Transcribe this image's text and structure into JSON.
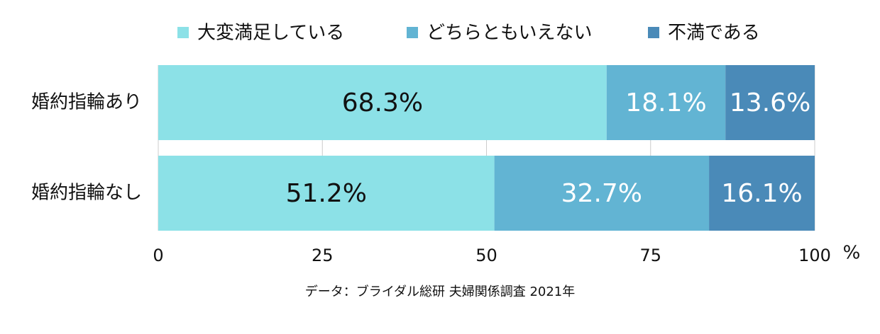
{
  "chart_data": {
    "type": "stacked-bar-horizontal",
    "categories": [
      "婚約指輪あり",
      "婚約指輪なし"
    ],
    "series": [
      {
        "name": "大変満足している",
        "color": "#8ce1e7",
        "values": [
          68.3,
          51.2
        ],
        "value_labels": [
          "68.3%",
          "51.2%"
        ],
        "label_color": "#111111"
      },
      {
        "name": "どちらともいえない",
        "color": "#62b4d3",
        "values": [
          18.1,
          32.7
        ],
        "value_labels": [
          "18.1%",
          "32.7%"
        ],
        "label_color": "#ffffff"
      },
      {
        "name": "不満である",
        "color": "#4a8ab8",
        "values": [
          13.6,
          16.1
        ],
        "value_labels": [
          "13.6%",
          "16.1%"
        ],
        "label_color": "#ffffff"
      }
    ],
    "xlim": [
      0,
      100
    ],
    "xticks": [
      0,
      25,
      50,
      75,
      100
    ],
    "x_unit": "%",
    "grid": true,
    "source": "データ：ブライダル総研 夫婦関係調査 2021年"
  }
}
